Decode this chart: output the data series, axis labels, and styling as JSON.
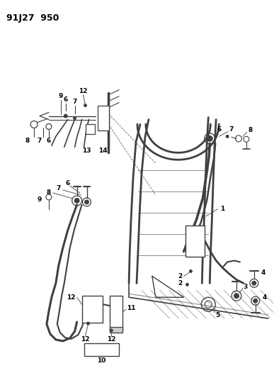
{
  "title": "91J27  950",
  "bg_color": "#ffffff",
  "line_color": "#404040",
  "figsize": [
    3.87,
    5.33
  ],
  "dpi": 100
}
